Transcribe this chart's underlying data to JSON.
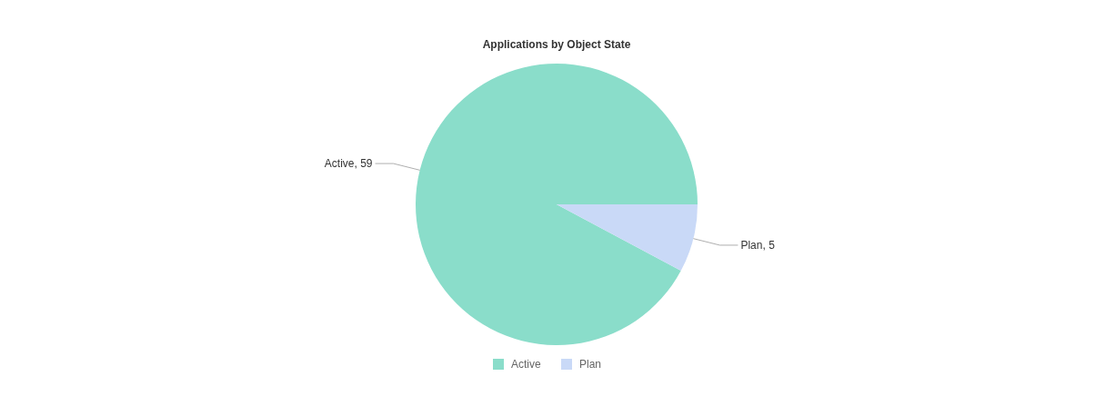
{
  "chart_data": {
    "type": "pie",
    "title": "Applications by Object State",
    "categories": [
      "Active",
      "Plan"
    ],
    "values": [
      59,
      5
    ],
    "colors": [
      "#8addca",
      "#c9d9f7"
    ],
    "value_labels": [
      "Active, 59",
      "Plan, 5"
    ],
    "legend": "bottom"
  }
}
